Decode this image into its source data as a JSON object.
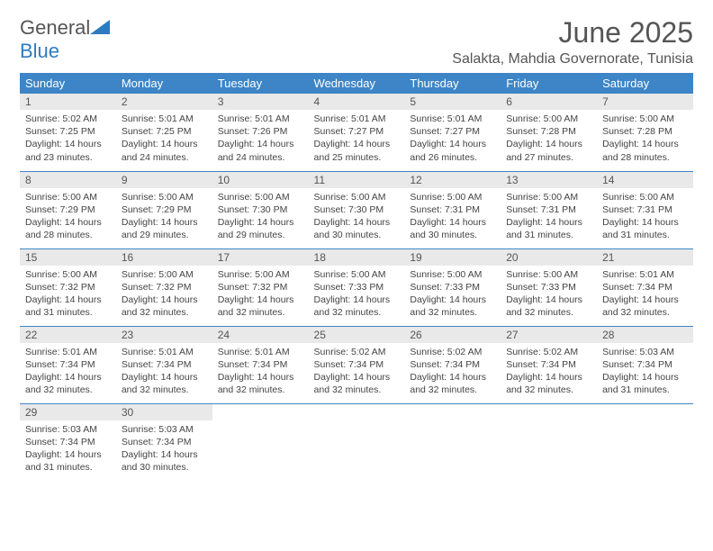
{
  "logo": {
    "word1": "General",
    "word2": "Blue"
  },
  "colors": {
    "header_bg": "#3d85c6",
    "header_text": "#ffffff",
    "daynum_bg": "#e9e9e9",
    "text_muted": "#555555",
    "border": "#3d85c6",
    "logo_blue": "#2f7bbf"
  },
  "typography": {
    "title_fontsize": 32,
    "location_fontsize": 16,
    "dayheader_fontsize": 13,
    "daynum_fontsize": 12,
    "body_fontsize": 10.5
  },
  "title": "June 2025",
  "location": "Salakta, Mahdia Governorate, Tunisia",
  "day_headers": [
    "Sunday",
    "Monday",
    "Tuesday",
    "Wednesday",
    "Thursday",
    "Friday",
    "Saturday"
  ],
  "weeks": [
    [
      {
        "n": "1",
        "sr": "Sunrise: 5:02 AM",
        "ss": "Sunset: 7:25 PM",
        "d1": "Daylight: 14 hours",
        "d2": "and 23 minutes."
      },
      {
        "n": "2",
        "sr": "Sunrise: 5:01 AM",
        "ss": "Sunset: 7:25 PM",
        "d1": "Daylight: 14 hours",
        "d2": "and 24 minutes."
      },
      {
        "n": "3",
        "sr": "Sunrise: 5:01 AM",
        "ss": "Sunset: 7:26 PM",
        "d1": "Daylight: 14 hours",
        "d2": "and 24 minutes."
      },
      {
        "n": "4",
        "sr": "Sunrise: 5:01 AM",
        "ss": "Sunset: 7:27 PM",
        "d1": "Daylight: 14 hours",
        "d2": "and 25 minutes."
      },
      {
        "n": "5",
        "sr": "Sunrise: 5:01 AM",
        "ss": "Sunset: 7:27 PM",
        "d1": "Daylight: 14 hours",
        "d2": "and 26 minutes."
      },
      {
        "n": "6",
        "sr": "Sunrise: 5:00 AM",
        "ss": "Sunset: 7:28 PM",
        "d1": "Daylight: 14 hours",
        "d2": "and 27 minutes."
      },
      {
        "n": "7",
        "sr": "Sunrise: 5:00 AM",
        "ss": "Sunset: 7:28 PM",
        "d1": "Daylight: 14 hours",
        "d2": "and 28 minutes."
      }
    ],
    [
      {
        "n": "8",
        "sr": "Sunrise: 5:00 AM",
        "ss": "Sunset: 7:29 PM",
        "d1": "Daylight: 14 hours",
        "d2": "and 28 minutes."
      },
      {
        "n": "9",
        "sr": "Sunrise: 5:00 AM",
        "ss": "Sunset: 7:29 PM",
        "d1": "Daylight: 14 hours",
        "d2": "and 29 minutes."
      },
      {
        "n": "10",
        "sr": "Sunrise: 5:00 AM",
        "ss": "Sunset: 7:30 PM",
        "d1": "Daylight: 14 hours",
        "d2": "and 29 minutes."
      },
      {
        "n": "11",
        "sr": "Sunrise: 5:00 AM",
        "ss": "Sunset: 7:30 PM",
        "d1": "Daylight: 14 hours",
        "d2": "and 30 minutes."
      },
      {
        "n": "12",
        "sr": "Sunrise: 5:00 AM",
        "ss": "Sunset: 7:31 PM",
        "d1": "Daylight: 14 hours",
        "d2": "and 30 minutes."
      },
      {
        "n": "13",
        "sr": "Sunrise: 5:00 AM",
        "ss": "Sunset: 7:31 PM",
        "d1": "Daylight: 14 hours",
        "d2": "and 31 minutes."
      },
      {
        "n": "14",
        "sr": "Sunrise: 5:00 AM",
        "ss": "Sunset: 7:31 PM",
        "d1": "Daylight: 14 hours",
        "d2": "and 31 minutes."
      }
    ],
    [
      {
        "n": "15",
        "sr": "Sunrise: 5:00 AM",
        "ss": "Sunset: 7:32 PM",
        "d1": "Daylight: 14 hours",
        "d2": "and 31 minutes."
      },
      {
        "n": "16",
        "sr": "Sunrise: 5:00 AM",
        "ss": "Sunset: 7:32 PM",
        "d1": "Daylight: 14 hours",
        "d2": "and 32 minutes."
      },
      {
        "n": "17",
        "sr": "Sunrise: 5:00 AM",
        "ss": "Sunset: 7:32 PM",
        "d1": "Daylight: 14 hours",
        "d2": "and 32 minutes."
      },
      {
        "n": "18",
        "sr": "Sunrise: 5:00 AM",
        "ss": "Sunset: 7:33 PM",
        "d1": "Daylight: 14 hours",
        "d2": "and 32 minutes."
      },
      {
        "n": "19",
        "sr": "Sunrise: 5:00 AM",
        "ss": "Sunset: 7:33 PM",
        "d1": "Daylight: 14 hours",
        "d2": "and 32 minutes."
      },
      {
        "n": "20",
        "sr": "Sunrise: 5:00 AM",
        "ss": "Sunset: 7:33 PM",
        "d1": "Daylight: 14 hours",
        "d2": "and 32 minutes."
      },
      {
        "n": "21",
        "sr": "Sunrise: 5:01 AM",
        "ss": "Sunset: 7:34 PM",
        "d1": "Daylight: 14 hours",
        "d2": "and 32 minutes."
      }
    ],
    [
      {
        "n": "22",
        "sr": "Sunrise: 5:01 AM",
        "ss": "Sunset: 7:34 PM",
        "d1": "Daylight: 14 hours",
        "d2": "and 32 minutes."
      },
      {
        "n": "23",
        "sr": "Sunrise: 5:01 AM",
        "ss": "Sunset: 7:34 PM",
        "d1": "Daylight: 14 hours",
        "d2": "and 32 minutes."
      },
      {
        "n": "24",
        "sr": "Sunrise: 5:01 AM",
        "ss": "Sunset: 7:34 PM",
        "d1": "Daylight: 14 hours",
        "d2": "and 32 minutes."
      },
      {
        "n": "25",
        "sr": "Sunrise: 5:02 AM",
        "ss": "Sunset: 7:34 PM",
        "d1": "Daylight: 14 hours",
        "d2": "and 32 minutes."
      },
      {
        "n": "26",
        "sr": "Sunrise: 5:02 AM",
        "ss": "Sunset: 7:34 PM",
        "d1": "Daylight: 14 hours",
        "d2": "and 32 minutes."
      },
      {
        "n": "27",
        "sr": "Sunrise: 5:02 AM",
        "ss": "Sunset: 7:34 PM",
        "d1": "Daylight: 14 hours",
        "d2": "and 32 minutes."
      },
      {
        "n": "28",
        "sr": "Sunrise: 5:03 AM",
        "ss": "Sunset: 7:34 PM",
        "d1": "Daylight: 14 hours",
        "d2": "and 31 minutes."
      }
    ],
    [
      {
        "n": "29",
        "sr": "Sunrise: 5:03 AM",
        "ss": "Sunset: 7:34 PM",
        "d1": "Daylight: 14 hours",
        "d2": "and 31 minutes."
      },
      {
        "n": "30",
        "sr": "Sunrise: 5:03 AM",
        "ss": "Sunset: 7:34 PM",
        "d1": "Daylight: 14 hours",
        "d2": "and 30 minutes."
      },
      null,
      null,
      null,
      null,
      null
    ]
  ]
}
